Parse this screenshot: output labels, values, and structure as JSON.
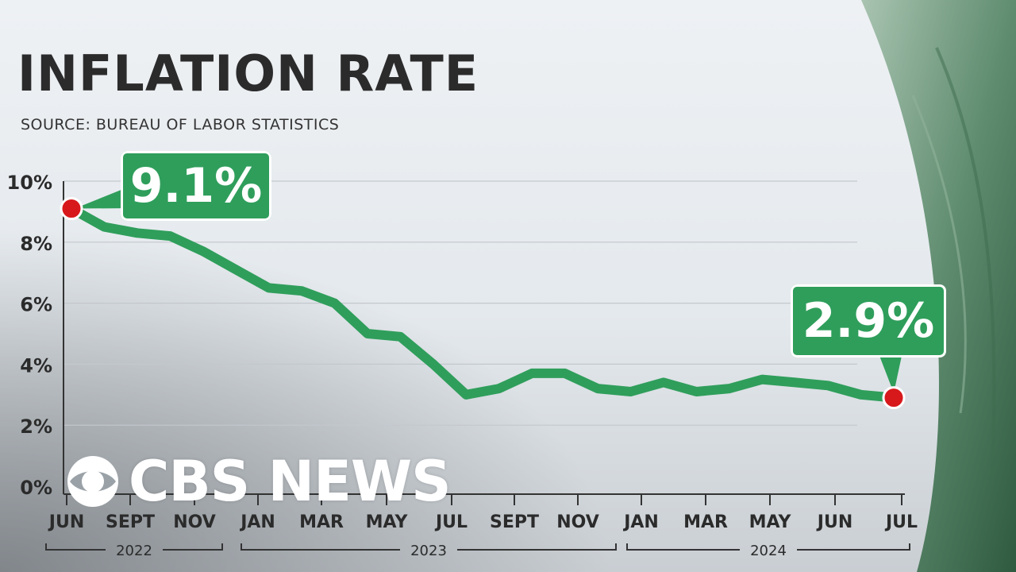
{
  "header": {
    "title": "INFLATION RATE",
    "source": "SOURCE: BUREAU OF LABOR STATISTICS"
  },
  "callouts": {
    "start": "9.1%",
    "end": "2.9%"
  },
  "logo": {
    "text": "CBS NEWS",
    "icon": "cbs-eye-icon"
  },
  "colors": {
    "line": "#2f9e5b",
    "marker": "#d7191c",
    "callout": "#2f9e5b"
  },
  "chart_data": {
    "type": "line",
    "title": "INFLATION RATE",
    "subtitle": "SOURCE: BUREAU OF LABOR STATISTICS",
    "x": [
      "2022-06",
      "2022-07",
      "2022-08",
      "2022-09",
      "2022-10",
      "2022-11",
      "2022-12",
      "2023-01",
      "2023-02",
      "2023-03",
      "2023-04",
      "2023-05",
      "2023-06",
      "2023-07",
      "2023-08",
      "2023-09",
      "2023-10",
      "2023-11",
      "2023-12",
      "2024-01",
      "2024-02",
      "2024-03",
      "2024-04",
      "2024-05",
      "2024-06",
      "2024-07"
    ],
    "series": [
      {
        "values": [
          9.1,
          8.5,
          8.3,
          8.2,
          7.7,
          7.1,
          6.5,
          6.4,
          6.0,
          5.0,
          4.9,
          4.0,
          3.0,
          3.2,
          3.7,
          3.7,
          3.2,
          3.1,
          3.4,
          3.1,
          3.2,
          3.5,
          3.4,
          3.3,
          3.0,
          2.9
        ]
      }
    ],
    "ylim": [
      0,
      10
    ],
    "yticks": [
      "0%",
      "2%",
      "4%",
      "6%",
      "8%",
      "10%"
    ],
    "xtick_labels": [
      "JUN",
      "SEPT",
      "NOV",
      "JAN",
      "MAR",
      "MAY",
      "JUL",
      "SEPT",
      "NOV",
      "JAN",
      "MAR",
      "MAY",
      "JUN",
      "JUL"
    ],
    "year_groups": [
      "2022",
      "2023",
      "2024"
    ],
    "grid": true,
    "annotations": [
      "9.1%",
      "2.9%"
    ]
  }
}
